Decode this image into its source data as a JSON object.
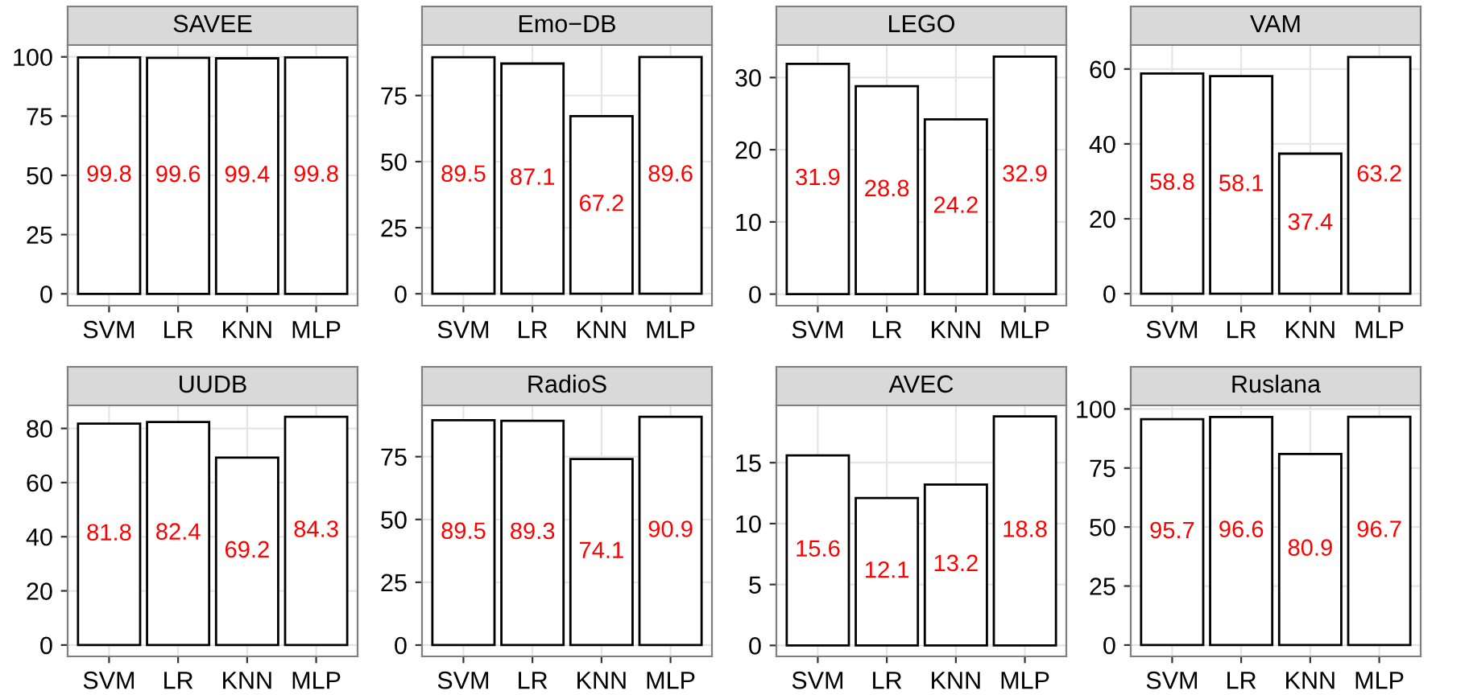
{
  "chart_data": [
    {
      "type": "bar",
      "title": "SAVEE",
      "categories": [
        "SVM",
        "LR",
        "KNN",
        "MLP"
      ],
      "values": [
        99.8,
        99.6,
        99.4,
        99.8
      ],
      "color": "#ffffff",
      "ylim": [
        -5,
        105
      ],
      "yticks": [
        0,
        25,
        50,
        75,
        100
      ],
      "grid": true,
      "data_labels": true
    },
    {
      "type": "bar",
      "title": "Emo−DB",
      "categories": [
        "SVM",
        "LR",
        "KNN",
        "MLP"
      ],
      "values": [
        89.5,
        87.1,
        67.2,
        89.6
      ],
      "color": "#ffffff",
      "ylim": [
        -4.5,
        94.1
      ],
      "yticks": [
        0,
        25,
        50,
        75
      ],
      "grid": true,
      "data_labels": true
    },
    {
      "type": "bar",
      "title": "LEGO",
      "categories": [
        "SVM",
        "LR",
        "KNN",
        "MLP"
      ],
      "values": [
        31.9,
        28.8,
        24.2,
        32.9
      ],
      "color": "#ffffff",
      "ylim": [
        -1.6,
        34.5
      ],
      "yticks": [
        0,
        10,
        20,
        30
      ],
      "grid": true,
      "data_labels": true
    },
    {
      "type": "bar",
      "title": "VAM",
      "categories": [
        "SVM",
        "LR",
        "KNN",
        "MLP"
      ],
      "values": [
        58.8,
        58.1,
        37.4,
        63.2
      ],
      "color": "#ffffff",
      "ylim": [
        -3.2,
        66.4
      ],
      "yticks": [
        0,
        20,
        40,
        60
      ],
      "grid": true,
      "data_labels": true
    },
    {
      "type": "bar",
      "title": "UUDB",
      "categories": [
        "SVM",
        "LR",
        "KNN",
        "MLP"
      ],
      "values": [
        81.8,
        82.4,
        69.2,
        84.3
      ],
      "color": "#ffffff",
      "ylim": [
        -4.2,
        88.5
      ],
      "yticks": [
        0,
        20,
        40,
        60,
        80
      ],
      "grid": true,
      "data_labels": true
    },
    {
      "type": "bar",
      "title": "RadioS",
      "categories": [
        "SVM",
        "LR",
        "KNN",
        "MLP"
      ],
      "values": [
        89.5,
        89.3,
        74.1,
        90.9
      ],
      "color": "#ffffff",
      "ylim": [
        -4.5,
        95.4
      ],
      "yticks": [
        0,
        25,
        50,
        75
      ],
      "grid": true,
      "data_labels": true
    },
    {
      "type": "bar",
      "title": "AVEC",
      "categories": [
        "SVM",
        "LR",
        "KNN",
        "MLP"
      ],
      "values": [
        15.6,
        12.1,
        13.2,
        18.8
      ],
      "color": "#ffffff",
      "ylim": [
        -0.9,
        19.7
      ],
      "yticks": [
        0,
        5,
        10,
        15
      ],
      "grid": true,
      "data_labels": true
    },
    {
      "type": "bar",
      "title": "Ruslana",
      "categories": [
        "SVM",
        "LR",
        "KNN",
        "MLP"
      ],
      "values": [
        95.7,
        96.6,
        80.9,
        96.7
      ],
      "color": "#ffffff",
      "ylim": [
        -4.8,
        101.5
      ],
      "yticks": [
        0,
        25,
        50,
        75,
        100
      ],
      "grid": true,
      "data_labels": true
    }
  ]
}
